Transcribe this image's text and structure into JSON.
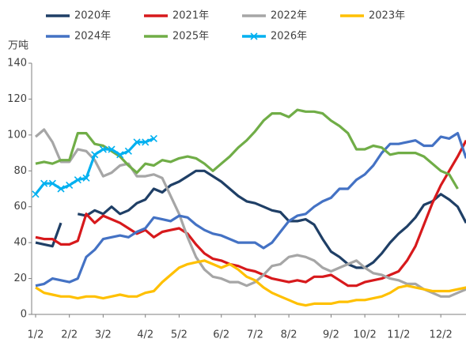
{
  "chart_data": {
    "type": "line",
    "y_label": "万吨",
    "categories": [
      "1/2",
      null,
      null,
      null,
      "2/2",
      null,
      null,
      null,
      "3/2",
      null,
      null,
      null,
      null,
      "4/2",
      null,
      null,
      null,
      "5/2",
      null,
      null,
      null,
      null,
      "6/2",
      null,
      null,
      null,
      "7/2",
      null,
      null,
      null,
      "8/2",
      null,
      null,
      null,
      null,
      "9/2",
      null,
      null,
      null,
      "10/2",
      null,
      null,
      null,
      "11/2",
      null,
      null,
      null,
      null,
      "12/2",
      null,
      null,
      null
    ],
    "ylim": [
      0,
      140
    ],
    "yticks": [
      0,
      20,
      40,
      60,
      80,
      100,
      120,
      140
    ],
    "grid": false,
    "series": [
      {
        "name": "2020年",
        "color": "#1f3f66",
        "values": [
          40,
          39,
          38,
          51,
          null,
          56,
          55,
          58,
          56,
          60,
          56,
          58,
          62,
          64,
          70,
          68,
          72,
          74,
          77,
          80,
          80,
          77,
          74,
          70,
          66,
          63,
          62,
          60,
          58,
          57,
          52,
          52,
          53,
          50,
          42,
          35,
          32,
          28,
          26,
          26,
          29,
          34,
          40,
          45,
          49,
          54,
          61,
          63,
          67,
          64,
          60,
          51
        ]
      },
      {
        "name": "2021年",
        "color": "#d7191c",
        "values": [
          43,
          42,
          42,
          39,
          39,
          41,
          56,
          51,
          55,
          53,
          51,
          48,
          45,
          47,
          43,
          46,
          47,
          48,
          45,
          39,
          34,
          31,
          30,
          28,
          27,
          25,
          24,
          22,
          20,
          19,
          18,
          19,
          18,
          21,
          21,
          22,
          19,
          16,
          16,
          18,
          19,
          20,
          22,
          24,
          30,
          38,
          50,
          62,
          72,
          80,
          88,
          97
        ]
      },
      {
        "name": "2022年",
        "color": "#a6a6a6",
        "values": [
          99,
          103,
          96,
          85,
          85,
          92,
          91,
          86,
          77,
          79,
          83,
          84,
          77,
          77,
          78,
          76,
          66,
          56,
          43,
          32,
          25,
          21,
          20,
          18,
          18,
          16,
          18,
          22,
          27,
          28,
          32,
          33,
          32,
          30,
          26,
          24,
          26,
          28,
          30,
          26,
          23,
          22,
          20,
          19,
          17,
          17,
          14,
          12,
          10,
          10,
          12,
          14
        ]
      },
      {
        "name": "2023年",
        "color": "#ffc000",
        "values": [
          15,
          12,
          11,
          10,
          10,
          9,
          10,
          10,
          9,
          10,
          11,
          10,
          10,
          12,
          13,
          18,
          22,
          26,
          28,
          29,
          30,
          28,
          26,
          28,
          25,
          21,
          19,
          15,
          12,
          10,
          8,
          6,
          5,
          6,
          6,
          6,
          7,
          7,
          8,
          8,
          9,
          10,
          12,
          15,
          16,
          15,
          14,
          13,
          13,
          13,
          14,
          15
        ]
      },
      {
        "name": "2024年",
        "color": "#4472c4",
        "values": [
          16,
          17,
          20,
          19,
          18,
          20,
          32,
          36,
          42,
          43,
          44,
          43,
          46,
          48,
          54,
          53,
          52,
          55,
          54,
          50,
          47,
          45,
          44,
          42,
          40,
          40,
          40,
          37,
          40,
          46,
          52,
          55,
          56,
          60,
          63,
          65,
          70,
          70,
          75,
          78,
          83,
          90,
          95,
          95,
          96,
          97,
          94,
          94,
          99,
          98,
          101,
          87
        ]
      },
      {
        "name": "2025年",
        "color": "#70ad47",
        "values": [
          84,
          85,
          84,
          86,
          86,
          101,
          101,
          95,
          94,
          91,
          88,
          83,
          79,
          84,
          83,
          86,
          85,
          87,
          88,
          87,
          84,
          80,
          84,
          88,
          93,
          97,
          102,
          108,
          112,
          112,
          110,
          114,
          113,
          113,
          112,
          108,
          105,
          101,
          92,
          92,
          94,
          93,
          89,
          90,
          90,
          90,
          88,
          84,
          80,
          78,
          70,
          null
        ]
      },
      {
        "name": "2026年",
        "color": "#00b0f0",
        "marker": "x",
        "values": [
          67,
          73,
          73,
          70,
          72,
          75,
          76,
          89,
          92,
          92,
          89,
          91,
          96,
          96,
          98,
          null,
          null,
          null,
          null,
          null,
          null,
          null,
          null,
          null,
          null,
          null,
          null,
          null,
          null,
          null,
          null,
          null,
          null,
          null,
          null,
          null,
          null,
          null,
          null,
          null,
          null,
          null,
          null,
          null,
          null,
          null,
          null,
          null,
          null,
          null,
          null,
          null
        ]
      }
    ]
  }
}
